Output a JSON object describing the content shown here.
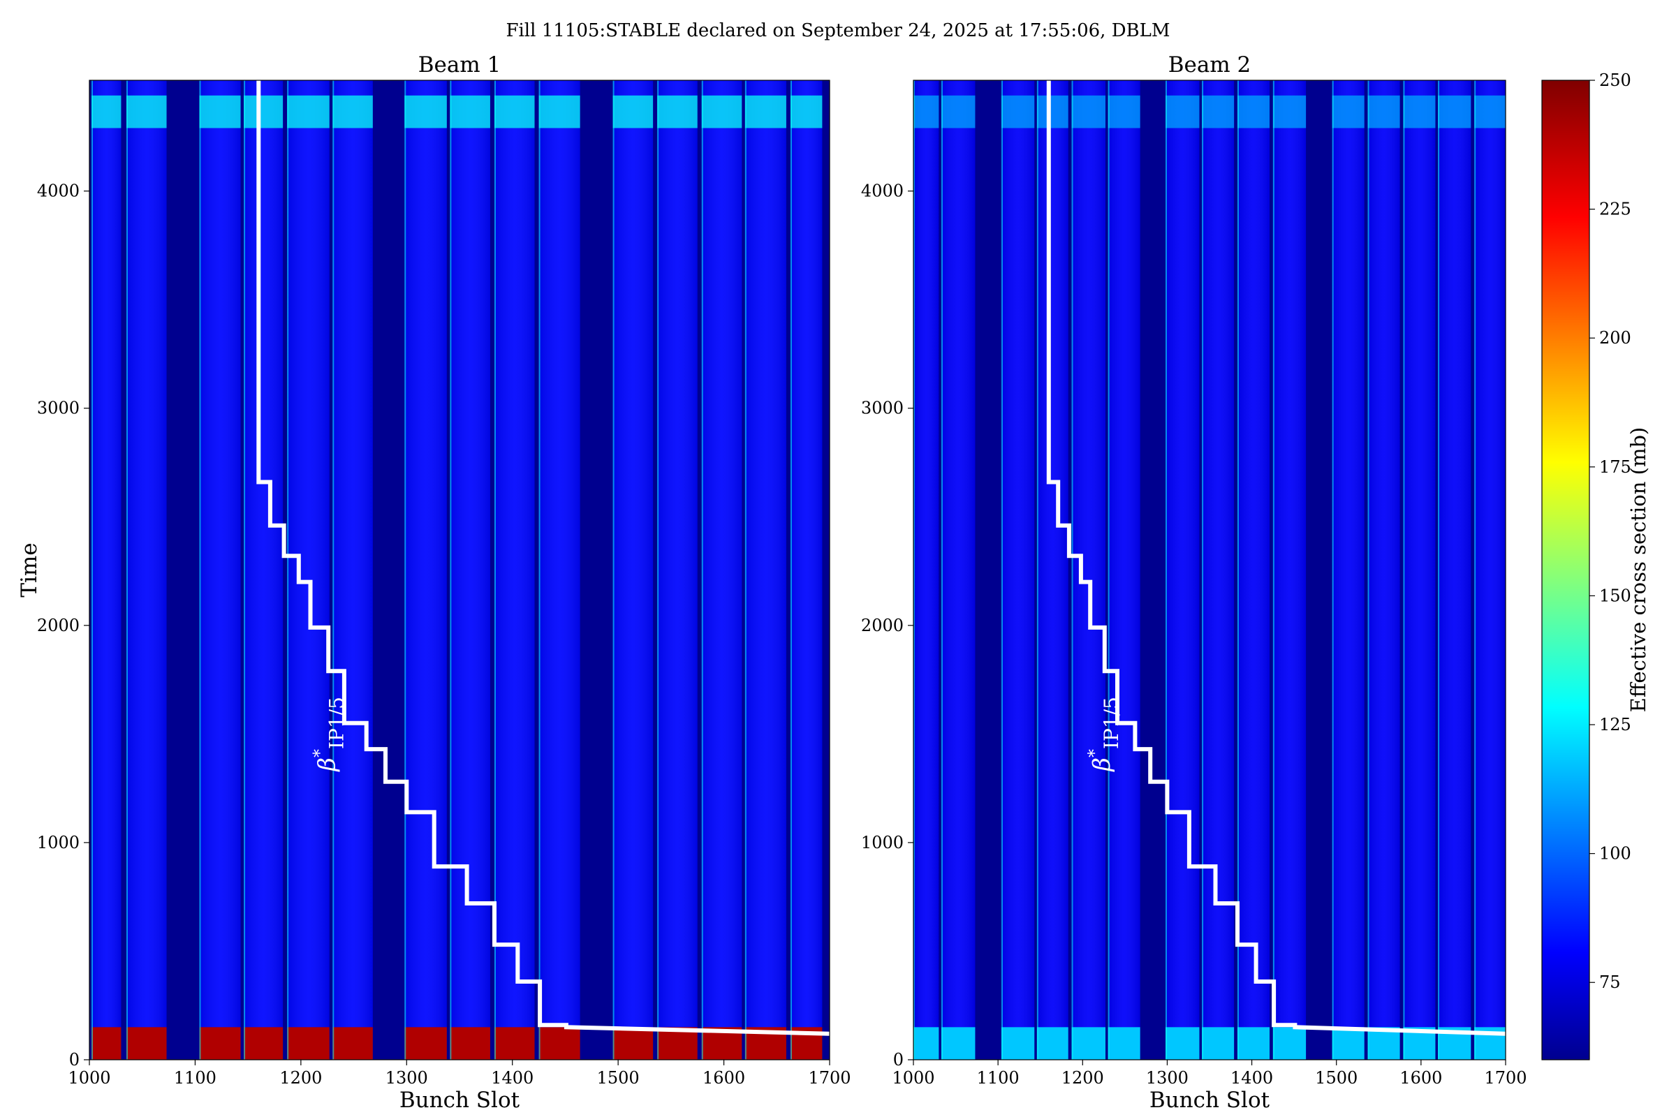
{
  "figure": {
    "suptitle": "Fill 11105:STABLE declared on September 24, 2025 at 17:55:06, DBLM"
  },
  "chart_data": [
    {
      "type": "heatmap",
      "title": "Beam 1",
      "xlabel": "Bunch Slot",
      "ylabel": "Time",
      "xlim": [
        1000,
        1700
      ],
      "ylim": [
        0,
        4510
      ],
      "xticks": [
        "1000",
        "1100",
        "1200",
        "1300",
        "1400",
        "1500",
        "1600",
        "1700"
      ],
      "yticks": [
        "0",
        "1000",
        "2000",
        "3000",
        "4000"
      ],
      "colormap": "jet",
      "color_range": [
        60,
        250
      ],
      "bunch_trains": [
        {
          "start": 1002,
          "end": 1030,
          "level": 82
        },
        {
          "start": 1035,
          "end": 1073,
          "level": 82
        },
        {
          "start": 1104,
          "end": 1143,
          "level": 82
        },
        {
          "start": 1146,
          "end": 1183,
          "level": 82
        },
        {
          "start": 1187,
          "end": 1227,
          "level": 82
        },
        {
          "start": 1230,
          "end": 1268,
          "level": 82
        },
        {
          "start": 1298,
          "end": 1338,
          "level": 82
        },
        {
          "start": 1341,
          "end": 1379,
          "level": 82
        },
        {
          "start": 1383,
          "end": 1421,
          "level": 82
        },
        {
          "start": 1425,
          "end": 1464,
          "level": 82
        },
        {
          "start": 1495,
          "end": 1533,
          "level": 82
        },
        {
          "start": 1537,
          "end": 1575,
          "level": 82
        },
        {
          "start": 1579,
          "end": 1617,
          "level": 82
        },
        {
          "start": 1620,
          "end": 1659,
          "level": 82
        },
        {
          "start": 1663,
          "end": 1693,
          "level": 82
        }
      ],
      "hot_band": {
        "time_range": [
          0,
          150
        ],
        "level": 240
      },
      "bright_band": {
        "time_range": [
          4290,
          4440
        ],
        "level": 130
      },
      "overlay": {
        "label_main": "β",
        "label_sup": "*",
        "label_sub": "IP1/5",
        "color": "#ffffff",
        "points": [
          [
            1160,
            4510
          ],
          [
            1160,
            2660
          ],
          [
            1171,
            2660
          ],
          [
            1171,
            2460
          ],
          [
            1184,
            2460
          ],
          [
            1184,
            2320
          ],
          [
            1198,
            2320
          ],
          [
            1198,
            2200
          ],
          [
            1209,
            2200
          ],
          [
            1209,
            1990
          ],
          [
            1226,
            1990
          ],
          [
            1226,
            1790
          ],
          [
            1241,
            1790
          ],
          [
            1241,
            1550
          ],
          [
            1262,
            1550
          ],
          [
            1262,
            1430
          ],
          [
            1280,
            1430
          ],
          [
            1280,
            1280
          ],
          [
            1300,
            1280
          ],
          [
            1300,
            1140
          ],
          [
            1326,
            1140
          ],
          [
            1326,
            890
          ],
          [
            1357,
            890
          ],
          [
            1357,
            720
          ],
          [
            1383,
            720
          ],
          [
            1383,
            530
          ],
          [
            1405,
            530
          ],
          [
            1405,
            360
          ],
          [
            1426,
            360
          ],
          [
            1426,
            160
          ],
          [
            1451,
            160
          ],
          [
            1451,
            150
          ],
          [
            1700,
            120
          ]
        ]
      }
    },
    {
      "type": "heatmap",
      "title": "Beam 2",
      "xlabel": "Bunch Slot",
      "ylabel": "",
      "xlim": [
        1000,
        1700
      ],
      "ylim": [
        0,
        4510
      ],
      "xticks": [
        "1000",
        "1100",
        "1200",
        "1300",
        "1400",
        "1500",
        "1600",
        "1700"
      ],
      "yticks": [
        "0",
        "1000",
        "2000",
        "3000",
        "4000"
      ],
      "colormap": "jet",
      "color_range": [
        60,
        250
      ],
      "bunch_trains": [
        {
          "start": 1000,
          "end": 1030,
          "level": 80
        },
        {
          "start": 1033,
          "end": 1073,
          "level": 80
        },
        {
          "start": 1104,
          "end": 1143,
          "level": 80
        },
        {
          "start": 1146,
          "end": 1183,
          "level": 80
        },
        {
          "start": 1187,
          "end": 1227,
          "level": 80
        },
        {
          "start": 1230,
          "end": 1268,
          "level": 80
        },
        {
          "start": 1298,
          "end": 1338,
          "level": 80
        },
        {
          "start": 1341,
          "end": 1379,
          "level": 80
        },
        {
          "start": 1383,
          "end": 1421,
          "level": 80
        },
        {
          "start": 1425,
          "end": 1464,
          "level": 80
        },
        {
          "start": 1495,
          "end": 1533,
          "level": 80
        },
        {
          "start": 1537,
          "end": 1575,
          "level": 80
        },
        {
          "start": 1579,
          "end": 1617,
          "level": 80
        },
        {
          "start": 1620,
          "end": 1659,
          "level": 80
        },
        {
          "start": 1663,
          "end": 1700,
          "level": 80
        }
      ],
      "hot_band": {
        "time_range": [
          0,
          150
        ],
        "level": 118
      },
      "bright_band": {
        "time_range": [
          4290,
          4440
        ],
        "level": 112
      },
      "overlay": {
        "label_main": "β",
        "label_sup": "*",
        "label_sub": "IP1/5",
        "color": "#ffffff",
        "points": [
          [
            1160,
            4510
          ],
          [
            1160,
            2660
          ],
          [
            1171,
            2660
          ],
          [
            1171,
            2460
          ],
          [
            1184,
            2460
          ],
          [
            1184,
            2320
          ],
          [
            1198,
            2320
          ],
          [
            1198,
            2200
          ],
          [
            1209,
            2200
          ],
          [
            1209,
            1990
          ],
          [
            1226,
            1990
          ],
          [
            1226,
            1790
          ],
          [
            1241,
            1790
          ],
          [
            1241,
            1550
          ],
          [
            1262,
            1550
          ],
          [
            1262,
            1430
          ],
          [
            1280,
            1430
          ],
          [
            1280,
            1280
          ],
          [
            1300,
            1280
          ],
          [
            1300,
            1140
          ],
          [
            1326,
            1140
          ],
          [
            1326,
            890
          ],
          [
            1357,
            890
          ],
          [
            1357,
            720
          ],
          [
            1383,
            720
          ],
          [
            1383,
            530
          ],
          [
            1405,
            530
          ],
          [
            1405,
            360
          ],
          [
            1426,
            360
          ],
          [
            1426,
            160
          ],
          [
            1451,
            160
          ],
          [
            1451,
            150
          ],
          [
            1700,
            120
          ]
        ]
      }
    }
  ],
  "colorbar": {
    "label": "Effective cross section (mb)",
    "range": [
      60,
      250
    ],
    "ticks": [
      "75",
      "100",
      "125",
      "150",
      "175",
      "200",
      "225",
      "250"
    ],
    "colormap": "jet"
  },
  "colors": {
    "gap_level": 60,
    "background": "#ffffff",
    "overlay": "#ffffff"
  }
}
